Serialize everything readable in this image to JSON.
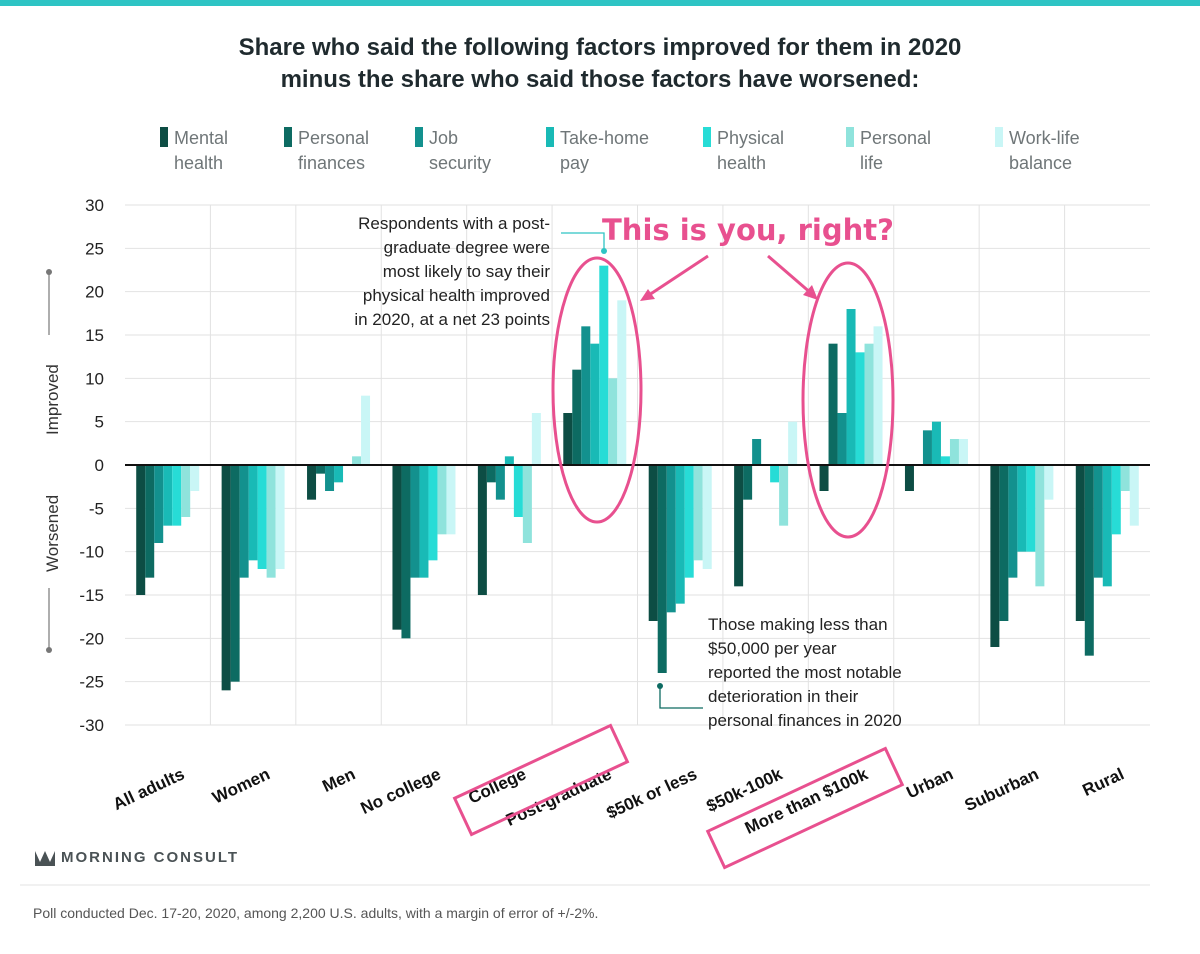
{
  "title_lines": [
    "Share who said the following factors improved for them in 2020",
    "minus the share who said those factors have worsened:"
  ],
  "axis_labels": {
    "improved": "Improved",
    "worsened": "Worsened"
  },
  "annotations": {
    "postgrad_lines": [
      "Respondents with a post-",
      "graduate degree were",
      "most likely to say their",
      "physical health improved",
      "in 2020, at a net 23 points"
    ],
    "low_income_lines": [
      "Those making less than",
      "$50,000 per year",
      "reported the most notable",
      "deterioration in their",
      "personal finances in 2020"
    ]
  },
  "overlay_text": "This is you, right?",
  "brand": "MORNING CONSULT",
  "footer": "Poll conducted Dec. 17-20, 2020, among 2,200 U.S. adults, with a margin of error of +/-2%.",
  "colors": {
    "accent_bar": "#2ec4c4",
    "overlay": "#e8508f",
    "series": [
      "#0d4d44",
      "#0d6b62",
      "#13918e",
      "#19bab6",
      "#27dcd6",
      "#8fe3dc",
      "#c9f6f6"
    ]
  },
  "icons": {
    "brand_logo": "morning-consult-logo-icon"
  },
  "chart_data": {
    "type": "bar",
    "categories": [
      "All adults",
      "Women",
      "Men",
      "No college",
      "College",
      "Post-graduate",
      "$50k or less",
      "$50k-100k",
      "More than $100k",
      "Urban",
      "Suburban",
      "Rural"
    ],
    "legend": [
      [
        "Mental",
        "health"
      ],
      [
        "Personal",
        "finances"
      ],
      [
        "Job",
        "security"
      ],
      [
        "Take-home",
        "pay"
      ],
      [
        "Physical",
        "health"
      ],
      [
        "Personal",
        "life"
      ],
      [
        "Work-life",
        "balance"
      ]
    ],
    "series": [
      {
        "name": "Mental health",
        "values": [
          -15,
          -26,
          -4,
          -19,
          -15,
          6,
          -18,
          -14,
          -3,
          -3,
          -21,
          -18
        ]
      },
      {
        "name": "Personal finances",
        "values": [
          -13,
          -25,
          -1,
          -20,
          -2,
          11,
          -24,
          -4,
          14,
          0,
          -18,
          -22
        ]
      },
      {
        "name": "Job security",
        "values": [
          -9,
          -13,
          -3,
          -13,
          -4,
          16,
          -17,
          3,
          6,
          4,
          -13,
          -13
        ]
      },
      {
        "name": "Take-home pay",
        "values": [
          -7,
          -11,
          -2,
          -13,
          1,
          14,
          -16,
          0,
          18,
          5,
          -10,
          -14
        ]
      },
      {
        "name": "Physical health",
        "values": [
          -7,
          -12,
          0,
          -11,
          -6,
          23,
          -13,
          -2,
          13,
          1,
          -10,
          -8
        ]
      },
      {
        "name": "Personal life",
        "values": [
          -6,
          -13,
          1,
          -8,
          -9,
          10,
          -11,
          -7,
          14,
          3,
          -14,
          -3
        ]
      },
      {
        "name": "Work-life balance",
        "values": [
          -3,
          -12,
          8,
          -8,
          6,
          19,
          -12,
          5,
          16,
          3,
          -4,
          -7
        ]
      }
    ],
    "yticks": [
      30,
      25,
      20,
      15,
      10,
      5,
      0,
      -5,
      -10,
      -15,
      -20,
      -25,
      -30
    ],
    "ylim": [
      -30,
      30
    ],
    "grid": true,
    "legend_position": "top"
  }
}
